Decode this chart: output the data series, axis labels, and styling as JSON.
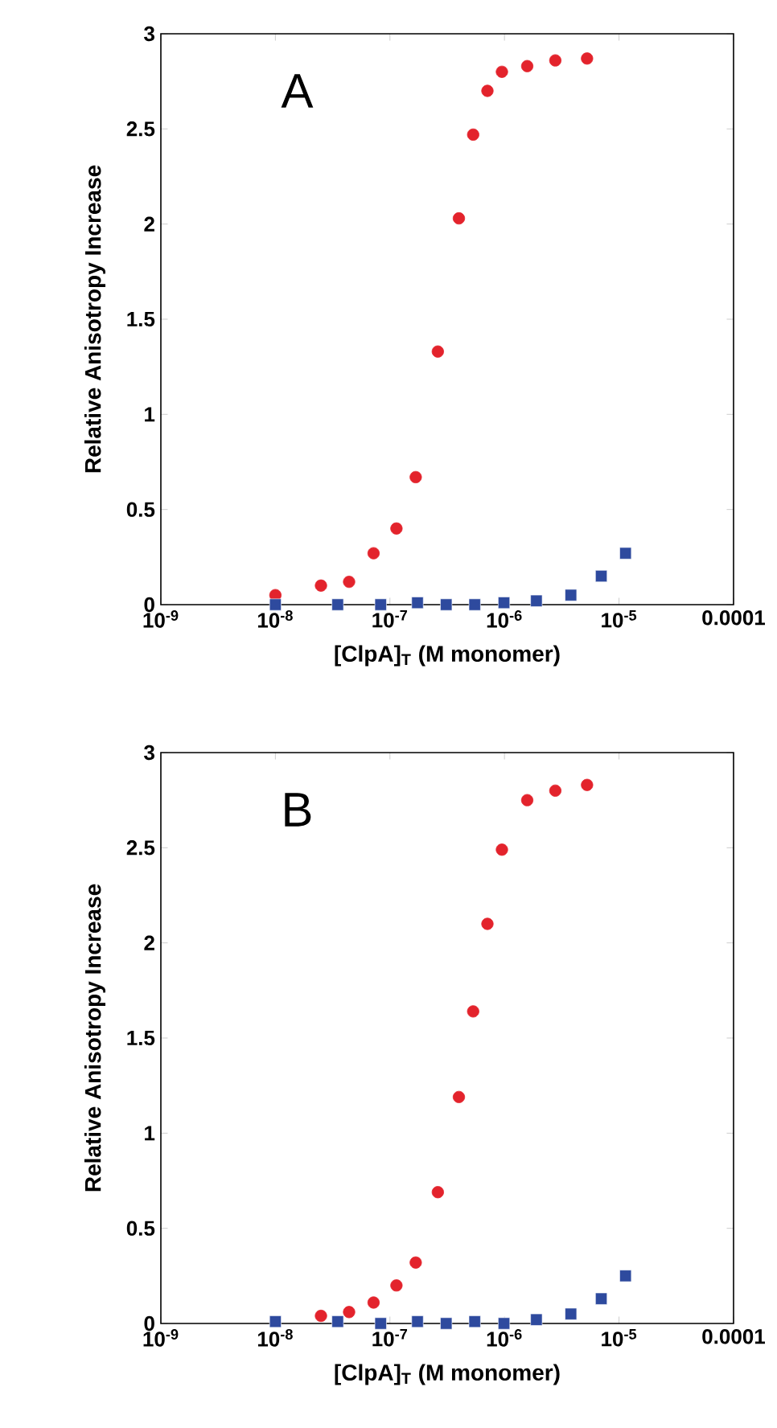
{
  "chart_data": [
    {
      "type": "scatter",
      "xlabel": "[ClpA]$_{T}$ (M monomer)",
      "ylabel": "Relative Anisotropy Increase",
      "annotations": [
        "A"
      ],
      "log": "x",
      "xlim": [
        1e-09,
        0.0001
      ],
      "ylim": [
        0,
        3
      ],
      "xticks": [
        {
          "value": 1e-09,
          "label": "10$^{-9}$"
        },
        {
          "value": 1e-08,
          "label": "10$^{-8}$"
        },
        {
          "value": 1e-07,
          "label": "10$^{-7}$"
        },
        {
          "value": 1e-06,
          "label": "10$^{-6}$"
        },
        {
          "value": 1e-05,
          "label": "10$^{-5}$"
        },
        {
          "value": 0.0001,
          "label": "0.0001"
        }
      ],
      "yticks": [
        0,
        0.5,
        1,
        1.5,
        2,
        2.5,
        3
      ],
      "series": [
        {
          "color": "#e3232c",
          "marker": "circle",
          "x": [
            1e-08,
            2.5e-08,
            4.4e-08,
            7.2e-08,
            1.14e-07,
            1.68e-07,
            2.62e-07,
            4e-07,
            5.33e-07,
            7.1e-07,
            9.5e-07,
            1.58e-06,
            2.78e-06,
            5.26e-06
          ],
          "values": [
            0.05,
            0.1,
            0.12,
            0.27,
            0.4,
            0.67,
            1.33,
            2.03,
            2.47,
            2.7,
            2.8,
            2.83,
            2.86,
            2.87
          ]
        },
        {
          "color": "#2e4a9e",
          "marker": "square",
          "x": [
            1e-08,
            3.5e-08,
            8.3e-08,
            1.74e-07,
            3.1e-07,
            5.5e-07,
            9.9e-07,
            1.9e-06,
            3.8e-06,
            7e-06,
            1.14e-05
          ],
          "values": [
            0,
            0,
            0,
            0.01,
            0,
            0,
            0.01,
            0.02,
            0.05,
            0.15,
            0.27
          ]
        }
      ]
    },
    {
      "type": "scatter",
      "xlabel": "[ClpA]$_{T}$ (M monomer)",
      "ylabel": "Relative Anisotropy Increase",
      "annotations": [
        "B"
      ],
      "log": "x",
      "xlim": [
        1e-09,
        0.0001
      ],
      "ylim": [
        0,
        3
      ],
      "xticks": [
        {
          "value": 1e-09,
          "label": "10$^{-9}$"
        },
        {
          "value": 1e-08,
          "label": "10$^{-8}$"
        },
        {
          "value": 1e-07,
          "label": "10$^{-7}$"
        },
        {
          "value": 1e-06,
          "label": "10$^{-6}$"
        },
        {
          "value": 1e-05,
          "label": "10$^{-5}$"
        },
        {
          "value": 0.0001,
          "label": "0.0001"
        }
      ],
      "yticks": [
        0,
        0.5,
        1,
        1.5,
        2,
        2.5,
        3
      ],
      "series": [
        {
          "color": "#e3232c",
          "marker": "circle",
          "x": [
            2.5e-08,
            4.4e-08,
            7.2e-08,
            1.14e-07,
            1.68e-07,
            2.62e-07,
            4e-07,
            5.33e-07,
            7.1e-07,
            9.5e-07,
            1.58e-06,
            2.78e-06,
            5.26e-06
          ],
          "values": [
            0.04,
            0.06,
            0.11,
            0.2,
            0.32,
            0.69,
            1.19,
            1.64,
            2.1,
            2.49,
            2.75,
            2.8,
            2.83
          ]
        },
        {
          "color": "#2e4a9e",
          "marker": "square",
          "x": [
            1e-08,
            3.5e-08,
            8.3e-08,
            1.74e-07,
            3.1e-07,
            5.5e-07,
            9.9e-07,
            1.9e-06,
            3.8e-06,
            7e-06,
            1.14e-05
          ],
          "values": [
            0.01,
            0.01,
            0,
            0.01,
            0,
            0.01,
            0,
            0.02,
            0.05,
            0.13,
            0.25
          ]
        }
      ]
    }
  ]
}
